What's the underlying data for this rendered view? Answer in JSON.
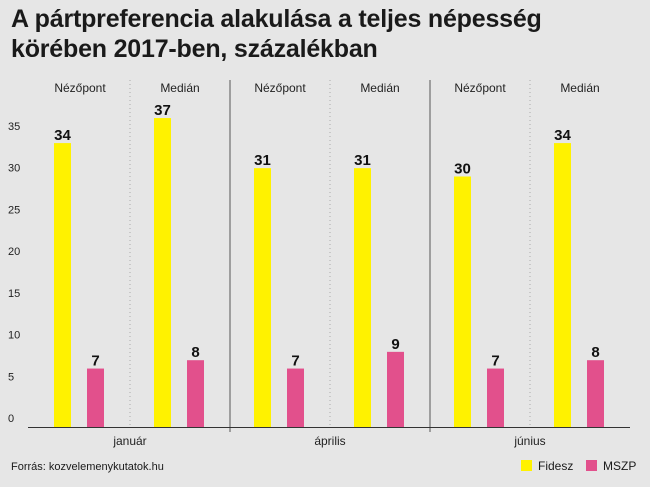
{
  "title": "A pártpreferencia alakulása a teljes népesség körében 2017-ben, százalékban",
  "source": "Forrás: kozvelemenykutatok.hu",
  "colors": {
    "fidesz": "#fff200",
    "mszp": "#e2508c",
    "axis": "#333333",
    "grid": "#aaaaaa"
  },
  "legend": [
    {
      "label": "Fidesz",
      "color": "#fff200"
    },
    {
      "label": "MSZP",
      "color": "#e2508c"
    }
  ],
  "chart_data": {
    "type": "bar",
    "title": "A pártpreferencia alakulása a teljes népesség körében 2017-ben, százalékban",
    "ylim": [
      0,
      38
    ],
    "yticks": [
      0,
      5,
      10,
      15,
      20,
      25,
      30,
      35
    ],
    "months": [
      "január",
      "április",
      "június"
    ],
    "institutes": [
      "Nézőpont",
      "Medián"
    ],
    "categories": [
      "január – Nézőpont",
      "január – Medián",
      "április – Nézőpont",
      "április – Medián",
      "június – Nézőpont",
      "június – Medián"
    ],
    "series": [
      {
        "name": "Fidesz",
        "color": "#fff200",
        "values": [
          34,
          37,
          31,
          31,
          30,
          34
        ]
      },
      {
        "name": "MSZP",
        "color": "#e2508c",
        "values": [
          7,
          8,
          7,
          9,
          7,
          8
        ]
      }
    ]
  }
}
